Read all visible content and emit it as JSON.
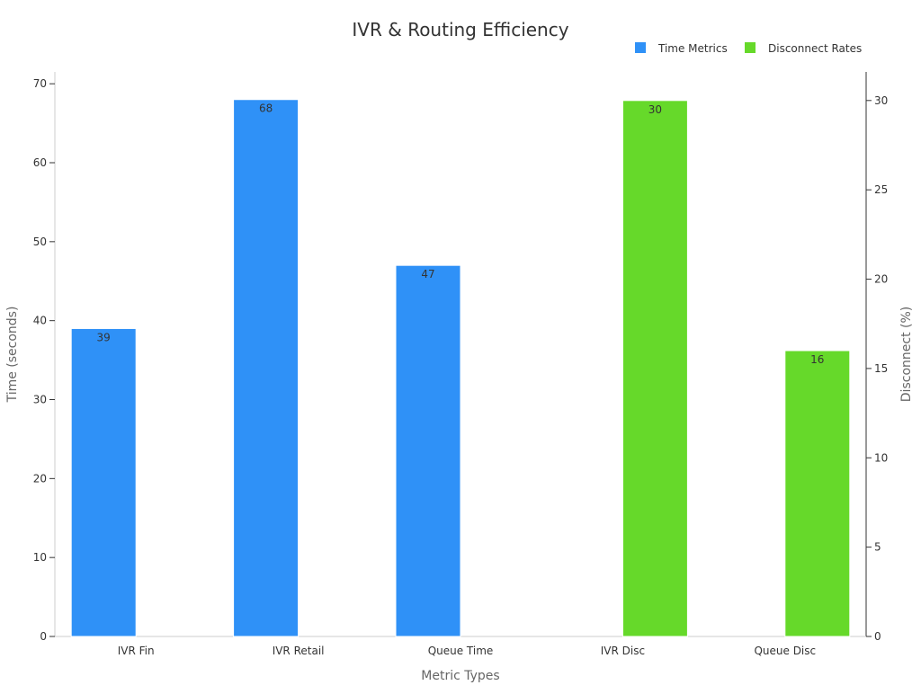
{
  "chart_data": {
    "type": "bar",
    "title": "IVR & Routing Efficiency",
    "xlabel": "Metric Types",
    "ylabel_left": "Time (seconds)",
    "ylabel_right": "Disconnect (%)",
    "categories": [
      "IVR Fin",
      "IVR Retail",
      "Queue Time",
      "IVR Disc",
      "Queue Disc"
    ],
    "series": [
      {
        "name": "Time Metrics",
        "axis": "left",
        "color": "#2f91f7",
        "values": [
          39,
          68,
          47,
          null,
          null
        ]
      },
      {
        "name": "Disconnect Rates",
        "axis": "right",
        "color": "#66d92a",
        "values": [
          null,
          null,
          null,
          30,
          16
        ]
      }
    ],
    "ylim_left": [
      0,
      71.5
    ],
    "ylim_right": [
      0,
      31.6
    ],
    "yticks_left": [
      0,
      10,
      20,
      30,
      40,
      50,
      60,
      70
    ],
    "yticks_right": [
      0,
      5,
      10,
      15,
      20,
      25,
      30
    ],
    "legend_position": "top-right",
    "grid": false
  }
}
